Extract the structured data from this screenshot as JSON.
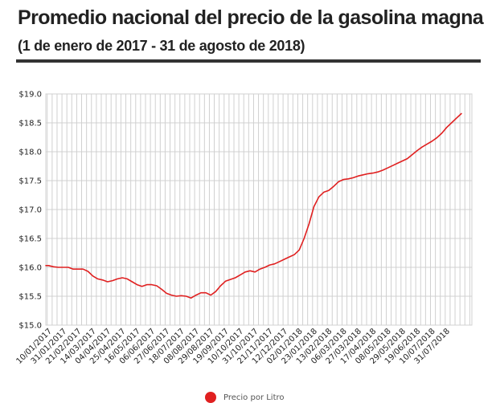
{
  "header": {
    "title": "Promedio nacional del precio de la gasolina magna",
    "subtitle": "(1 de enero de 2017 - 31 de agosto de 2018)"
  },
  "colors": {
    "series": "#e02020",
    "grid": "#d0d0d0",
    "rule": "#333333"
  },
  "chart_data": {
    "type": "line",
    "title": "Promedio nacional del precio de la gasolina magna",
    "subtitle": "(1 de enero de 2017 - 31 de agosto de 2018)",
    "xlabel": "",
    "ylabel": "",
    "ylim": [
      15.0,
      19.0
    ],
    "yticks": [
      15.0,
      15.5,
      16.0,
      16.5,
      17.0,
      17.5,
      18.0,
      18.5,
      19.0
    ],
    "ytick_labels": [
      "$15.0",
      "$15.5",
      "$16.0",
      "$16.5",
      "$17.0",
      "$17.5",
      "$18.0",
      "$18.5",
      "$19.0"
    ],
    "xlim": [
      "2017-01-01",
      "2018-08-31"
    ],
    "xtick_labels": [
      "10/01/2017",
      "31/01/2017",
      "21/02/2017",
      "14/03/2017",
      "04/04/2017",
      "25/04/2017",
      "16/05/2017",
      "06/06/2017",
      "27/06/2017",
      "18/07/2017",
      "08/08/2017",
      "29/08/2017",
      "19/09/2017",
      "10/10/2017",
      "31/10/2017",
      "21/11/2017",
      "12/12/2017",
      "02/01/2018",
      "23/01/2018",
      "13/02/2018",
      "06/03/2018",
      "27/03/2018",
      "17/04/2018",
      "08/05/2018",
      "29/05/2018",
      "19/06/2018",
      "10/07/2018",
      "31/07/2018"
    ],
    "grid": true,
    "legend_position": "bottom",
    "series": [
      {
        "name": "Precio por Litro",
        "color": "#e02020",
        "points": [
          [
            "2017-01-01",
            16.03
          ],
          [
            "2017-01-05",
            16.03
          ],
          [
            "2017-01-12",
            16.01
          ],
          [
            "2017-01-19",
            16.0
          ],
          [
            "2017-01-26",
            16.0
          ],
          [
            "2017-02-02",
            16.0
          ],
          [
            "2017-02-09",
            15.97
          ],
          [
            "2017-02-16",
            15.97
          ],
          [
            "2017-02-23",
            15.97
          ],
          [
            "2017-03-02",
            15.93
          ],
          [
            "2017-03-09",
            15.85
          ],
          [
            "2017-03-16",
            15.8
          ],
          [
            "2017-03-23",
            15.78
          ],
          [
            "2017-03-30",
            15.75
          ],
          [
            "2017-04-06",
            15.77
          ],
          [
            "2017-04-13",
            15.8
          ],
          [
            "2017-04-20",
            15.82
          ],
          [
            "2017-04-27",
            15.8
          ],
          [
            "2017-05-04",
            15.75
          ],
          [
            "2017-05-11",
            15.7
          ],
          [
            "2017-05-18",
            15.67
          ],
          [
            "2017-05-25",
            15.7
          ],
          [
            "2017-06-01",
            15.7
          ],
          [
            "2017-06-08",
            15.68
          ],
          [
            "2017-06-15",
            15.62
          ],
          [
            "2017-06-22",
            15.55
          ],
          [
            "2017-06-29",
            15.52
          ],
          [
            "2017-07-06",
            15.5
          ],
          [
            "2017-07-13",
            15.51
          ],
          [
            "2017-07-20",
            15.5
          ],
          [
            "2017-07-27",
            15.47
          ],
          [
            "2017-08-03",
            15.52
          ],
          [
            "2017-08-10",
            15.56
          ],
          [
            "2017-08-17",
            15.56
          ],
          [
            "2017-08-24",
            15.52
          ],
          [
            "2017-08-31",
            15.58
          ],
          [
            "2017-09-07",
            15.68
          ],
          [
            "2017-09-14",
            15.76
          ],
          [
            "2017-09-21",
            15.79
          ],
          [
            "2017-09-28",
            15.82
          ],
          [
            "2017-10-05",
            15.87
          ],
          [
            "2017-10-12",
            15.92
          ],
          [
            "2017-10-19",
            15.94
          ],
          [
            "2017-10-26",
            15.92
          ],
          [
            "2017-11-02",
            15.97
          ],
          [
            "2017-11-09",
            16.0
          ],
          [
            "2017-11-16",
            16.04
          ],
          [
            "2017-11-23",
            16.06
          ],
          [
            "2017-11-30",
            16.1
          ],
          [
            "2017-12-07",
            16.14
          ],
          [
            "2017-12-14",
            16.18
          ],
          [
            "2017-12-21",
            16.22
          ],
          [
            "2017-12-28",
            16.3
          ],
          [
            "2018-01-04",
            16.5
          ],
          [
            "2018-01-11",
            16.75
          ],
          [
            "2018-01-18",
            17.05
          ],
          [
            "2018-01-25",
            17.22
          ],
          [
            "2018-02-01",
            17.3
          ],
          [
            "2018-02-08",
            17.33
          ],
          [
            "2018-02-15",
            17.4
          ],
          [
            "2018-02-22",
            17.48
          ],
          [
            "2018-03-01",
            17.52
          ],
          [
            "2018-03-08",
            17.53
          ],
          [
            "2018-03-15",
            17.55
          ],
          [
            "2018-03-22",
            17.58
          ],
          [
            "2018-03-29",
            17.6
          ],
          [
            "2018-04-05",
            17.62
          ],
          [
            "2018-04-12",
            17.63
          ],
          [
            "2018-04-19",
            17.65
          ],
          [
            "2018-04-26",
            17.68
          ],
          [
            "2018-05-03",
            17.72
          ],
          [
            "2018-05-10",
            17.76
          ],
          [
            "2018-05-17",
            17.8
          ],
          [
            "2018-05-24",
            17.84
          ],
          [
            "2018-05-31",
            17.88
          ],
          [
            "2018-06-07",
            17.95
          ],
          [
            "2018-06-14",
            18.02
          ],
          [
            "2018-06-21",
            18.08
          ],
          [
            "2018-06-28",
            18.13
          ],
          [
            "2018-07-05",
            18.18
          ],
          [
            "2018-07-12",
            18.24
          ],
          [
            "2018-07-19",
            18.32
          ],
          [
            "2018-07-26",
            18.42
          ],
          [
            "2018-08-02",
            18.5
          ],
          [
            "2018-08-09",
            18.58
          ],
          [
            "2018-08-16",
            18.66
          ]
        ]
      }
    ]
  }
}
